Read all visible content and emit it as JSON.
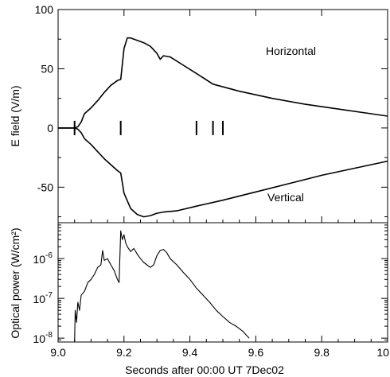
{
  "chart_data": [
    {
      "type": "line",
      "ylabel": "E field (V/m)",
      "xlim": [
        9.0,
        10.0
      ],
      "ylim": [
        -80,
        100
      ],
      "yticks": [
        "100",
        "50",
        "0",
        "-50"
      ],
      "grid": false,
      "annotations": [
        "Horizontal",
        "Vertical"
      ],
      "event_markers_x": [
        9.19,
        9.42,
        9.47,
        9.5
      ],
      "start_marker_x": 9.05,
      "series": [
        {
          "name": "Horizontal",
          "x": [
            9.0,
            9.05,
            9.06,
            9.07,
            9.08,
            9.1,
            9.12,
            9.14,
            9.16,
            9.18,
            9.19,
            9.2,
            9.21,
            9.22,
            9.24,
            9.26,
            9.28,
            9.3,
            9.31,
            9.32,
            9.34,
            9.38,
            9.42,
            9.47,
            9.55,
            9.65,
            9.75,
            9.85,
            9.95,
            10.0
          ],
          "y": [
            0,
            0,
            1,
            5,
            12,
            17,
            23,
            30,
            36,
            40,
            41,
            67,
            76,
            76,
            74,
            72,
            69,
            63,
            58,
            61,
            60,
            53,
            46,
            37,
            31,
            25,
            20,
            16,
            12,
            10
          ]
        },
        {
          "name": "Vertical",
          "x": [
            9.0,
            9.05,
            9.06,
            9.07,
            9.08,
            9.1,
            9.12,
            9.14,
            9.16,
            9.18,
            9.19,
            9.2,
            9.22,
            9.24,
            9.26,
            9.28,
            9.3,
            9.32,
            9.36,
            9.42,
            9.5,
            9.6,
            9.7,
            9.8,
            9.9,
            10.0
          ],
          "y": [
            0,
            0,
            -1,
            -4,
            -9,
            -14,
            -20,
            -26,
            -31,
            -36,
            -38,
            -55,
            -68,
            -73,
            -75,
            -74,
            -72,
            -71,
            -70,
            -66,
            -61,
            -54,
            -47,
            -40,
            -34,
            -28
          ]
        }
      ]
    },
    {
      "type": "line",
      "ylabel": "Optical power (W/cm²)",
      "xlabel": "Seconds after 00:00 UT 7Dec02",
      "xlim": [
        9.0,
        10.0
      ],
      "ylim": [
        8e-09,
        8e-06
      ],
      "yscale": "log",
      "xticks": [
        "9.0",
        "9.2",
        "9.4",
        "9.6",
        "9.8",
        "10.0"
      ],
      "yticks": [
        "10",
        "10",
        "10"
      ],
      "ytick_exponents": [
        "-6",
        "-7",
        "-8"
      ],
      "grid": false,
      "series": [
        {
          "name": "",
          "x": [
            9.05,
            9.052,
            9.056,
            9.06,
            9.065,
            9.07,
            9.08,
            9.09,
            9.1,
            9.11,
            9.12,
            9.13,
            9.135,
            9.14,
            9.15,
            9.16,
            9.17,
            9.18,
            9.185,
            9.19,
            9.195,
            9.2,
            9.205,
            9.21,
            9.22,
            9.23,
            9.24,
            9.25,
            9.26,
            9.28,
            9.29,
            9.3,
            9.31,
            9.32,
            9.33,
            9.34,
            9.36,
            9.38,
            9.4,
            9.42,
            9.44,
            9.46,
            9.48,
            9.5,
            9.52,
            9.54,
            9.56,
            9.58
          ],
          "y": [
            8e-09,
            5e-08,
            2.5e-08,
            8e-08,
            5e-08,
            1.2e-07,
            1.5e-07,
            2.5e-07,
            3e-07,
            4e-07,
            6e-07,
            7e-07,
            1.6e-06,
            9e-07,
            1e-06,
            7e-07,
            5e-07,
            3e-07,
            2.5e-07,
            5e-06,
            3e-06,
            4e-06,
            2.5e-06,
            2e-06,
            1.5e-06,
            1.8e-06,
            1.3e-06,
            1e-06,
            8e-07,
            6e-07,
            7e-07,
            1.2e-06,
            1.6e-06,
            1.7e-06,
            1.4e-06,
            1e-06,
            7e-07,
            4.5e-07,
            3e-07,
            1.8e-07,
            1.2e-07,
            8e-08,
            5e-08,
            3.5e-08,
            2.5e-08,
            2e-08,
            1.5e-08,
            1e-08
          ]
        }
      ]
    }
  ]
}
